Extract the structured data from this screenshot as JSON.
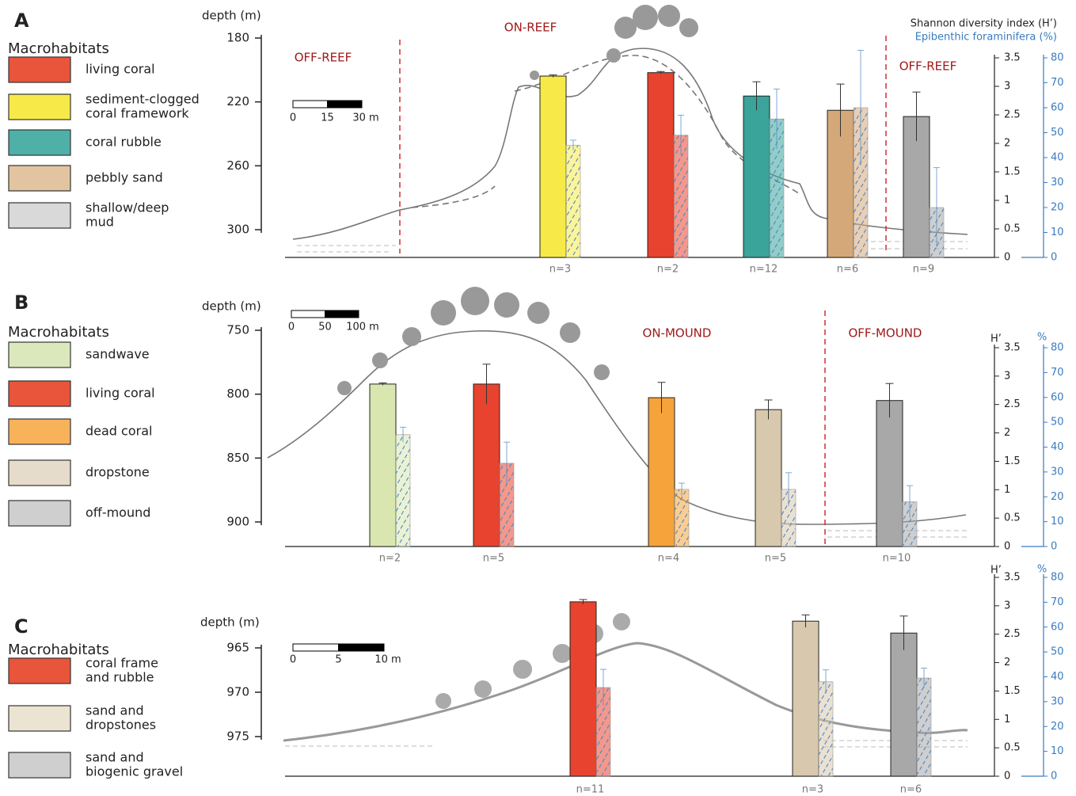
{
  "chart_data": [
    {
      "type": "bar",
      "panel": "A",
      "legend_title": "Macrohabitats",
      "legend": [
        {
          "label": [
            "living coral"
          ],
          "color": "#e8553a"
        },
        {
          "label": [
            "sediment-clogged",
            "coral framework"
          ],
          "color": "#f7ea48"
        },
        {
          "label": [
            "coral rubble"
          ],
          "color": "#4fb0a8"
        },
        {
          "label": [
            "pebbly sand"
          ],
          "color": "#e2c4a0"
        },
        {
          "label": [
            "shallow/deep",
            "mud"
          ],
          "color": "#d9d9d9"
        }
      ],
      "depth_label": "depth (m)",
      "depth_lim": [
        180,
        300
      ],
      "depth_ticks": [
        180,
        220,
        260,
        300
      ],
      "scale_bar": [
        0,
        15,
        {
          "value": 30,
          "label": "30 m"
        }
      ],
      "annotations": [
        "OFF-REEF",
        "ON-REEF",
        "OFF-REEF"
      ],
      "categories": [
        "n=3",
        "n=2",
        "n=12",
        "n=6",
        "n=9"
      ],
      "series": [
        {
          "name": "Shannon diversity index (H’)",
          "colors": [
            "#f7ea48",
            "#e8432e",
            "#3aa39a",
            "#d4a878",
            "#a8a8a8"
          ],
          "values": [
            3.18,
            3.24,
            2.83,
            2.58,
            2.47
          ],
          "errors": [
            0.02,
            0.02,
            0.25,
            0.46,
            0.43
          ]
        },
        {
          "name": "Epibenthic foraminifera (%)",
          "axis": "y2",
          "color": "#4a86c5",
          "values": [
            45,
            49,
            55.5,
            60,
            20
          ],
          "errors": [
            2,
            8,
            12,
            23,
            16
          ]
        }
      ],
      "ylim": [
        0,
        3.5
      ],
      "yticks": [
        0,
        0.5,
        1,
        1.5,
        2,
        2.5,
        3,
        3.5
      ],
      "y2lim": [
        0,
        80
      ],
      "y2ticks": [
        0,
        10,
        20,
        30,
        40,
        50,
        60,
        70,
        80
      ]
    },
    {
      "type": "bar",
      "panel": "B",
      "legend_title": "Macrohabitats",
      "legend": [
        {
          "label": [
            "sandwave"
          ],
          "color": "#dbe8bc"
        },
        {
          "label": [
            "living coral"
          ],
          "color": "#e8553a"
        },
        {
          "label": [
            "dead coral"
          ],
          "color": "#f7b25a"
        },
        {
          "label": [
            "dropstone"
          ],
          "color": "#e6dccb"
        },
        {
          "label": [
            "off-mound"
          ],
          "color": "#cfcfcf"
        }
      ],
      "depth_label": "depth (m)",
      "depth_lim": [
        750,
        900
      ],
      "depth_ticks": [
        750,
        800,
        850,
        900
      ],
      "scale_bar": [
        0,
        50,
        {
          "value": 100,
          "label": "100 m"
        }
      ],
      "annotations": [
        "ON-MOUND",
        "OFF-MOUND"
      ],
      "categories": [
        "n=2",
        "n=5",
        "n=4",
        "n=5",
        "n=10"
      ],
      "series": [
        {
          "name": "H’",
          "colors": [
            "#d9e6b0",
            "#e8432e",
            "#f5a33a",
            "#d8c8ad",
            "#a8a8a8"
          ],
          "values": [
            2.86,
            2.86,
            2.62,
            2.41,
            2.57
          ],
          "errors": [
            0.02,
            0.35,
            0.27,
            0.17,
            0.3
          ]
        },
        {
          "name": "%",
          "axis": "y2",
          "color": "#4a86c5",
          "values": [
            45,
            33.5,
            23,
            23,
            18
          ],
          "errors": [
            3,
            8.5,
            2.5,
            6.7,
            6.5
          ]
        }
      ],
      "ylim": [
        0,
        3.5
      ],
      "yticks": [
        0,
        0.5,
        1,
        1.5,
        2,
        2.5,
        3,
        3.5
      ],
      "y2lim": [
        0,
        80
      ],
      "y2ticks": [
        0,
        10,
        20,
        30,
        40,
        50,
        60,
        70,
        80
      ]
    },
    {
      "type": "bar",
      "panel": "C",
      "legend_title": "Macrohabitats",
      "legend": [
        {
          "label": [
            "coral frame",
            "and rubble"
          ],
          "color": "#e8553a"
        },
        {
          "label": [
            "sand and",
            "dropstones"
          ],
          "color": "#ece4d2"
        },
        {
          "label": [
            "sand and",
            "biogenic gravel"
          ],
          "color": "#cfcfcf"
        }
      ],
      "depth_label": "depth (m)",
      "depth_lim": [
        965,
        975
      ],
      "depth_ticks": [
        965,
        970,
        975
      ],
      "scale_bar": [
        0,
        5,
        {
          "value": 10,
          "label": "10 m"
        }
      ],
      "annotations": [],
      "categories": [
        "n=11",
        "n=3",
        "n=6"
      ],
      "series": [
        {
          "name": "H’",
          "colors": [
            "#e8432e",
            "#d8c8ad",
            "#a8a8a8"
          ],
          "values": [
            3.07,
            2.73,
            2.52
          ],
          "errors": [
            0.04,
            0.11,
            0.3
          ]
        },
        {
          "name": "%",
          "axis": "y2",
          "color": "#4a86c5",
          "values": [
            35.7,
            38,
            39.5
          ],
          "errors": [
            7.3,
            4.8,
            4
          ]
        }
      ],
      "ylim": [
        0,
        3.5
      ],
      "yticks": [
        0,
        0.5,
        1,
        1.5,
        2,
        2.5,
        3,
        3.5
      ],
      "y2lim": [
        0,
        80
      ],
      "y2ticks": [
        0,
        10,
        20,
        30,
        40,
        50,
        60,
        70,
        80
      ]
    }
  ]
}
